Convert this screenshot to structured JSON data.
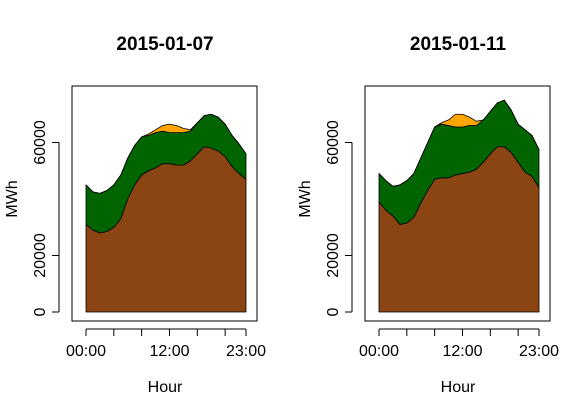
{
  "chart_data": [
    {
      "type": "area",
      "stacked": true,
      "title": "2015-01-07",
      "xlabel": "Hour",
      "ylabel": "MWh",
      "x": [
        0,
        1,
        2,
        3,
        4,
        5,
        6,
        7,
        8,
        9,
        10,
        11,
        12,
        13,
        14,
        15,
        16,
        17,
        18,
        19,
        20,
        21,
        22,
        23
      ],
      "xticks": [
        "00:00",
        "12:00",
        "23:00"
      ],
      "yticks": [
        "0",
        "20000",
        "60000"
      ],
      "ylim": [
        0,
        80000
      ],
      "xlim": [
        0,
        23
      ],
      "grid": false,
      "series": [
        {
          "color": "#8B4513",
          "values": [
            31000,
            29000,
            28000,
            28500,
            30000,
            33000,
            40000,
            45000,
            48500,
            50000,
            51000,
            52500,
            52500,
            52000,
            52000,
            53500,
            56000,
            58500,
            58000,
            57000,
            55000,
            51500,
            49000,
            47000
          ]
        },
        {
          "color": "#006400",
          "values": [
            14000,
            13500,
            14000,
            14500,
            15000,
            15500,
            14500,
            14000,
            13500,
            12500,
            12500,
            11500,
            11000,
            11500,
            11500,
            10500,
            11000,
            11000,
            12000,
            12000,
            11500,
            11000,
            10500,
            9000
          ]
        },
        {
          "color": "#FFA500",
          "values": [
            0,
            0,
            0,
            0,
            0,
            0,
            0,
            0,
            0,
            500,
            1000,
            2000,
            3000,
            2500,
            1500,
            500,
            0,
            0,
            0,
            0,
            0,
            0,
            0,
            0
          ]
        }
      ]
    },
    {
      "type": "area",
      "stacked": true,
      "title": "2015-01-11",
      "xlabel": "Hour",
      "ylabel": "MWh",
      "x": [
        0,
        1,
        2,
        3,
        4,
        5,
        6,
        7,
        8,
        9,
        10,
        11,
        12,
        13,
        14,
        15,
        16,
        17,
        18,
        19,
        20,
        21,
        22,
        23
      ],
      "xticks": [
        "00:00",
        "12:00",
        "23:00"
      ],
      "yticks": [
        "0",
        "20000",
        "60000"
      ],
      "ylim": [
        0,
        80000
      ],
      "xlim": [
        0,
        23
      ],
      "grid": false,
      "series": [
        {
          "color": "#8B4513",
          "values": [
            39000,
            36000,
            34000,
            31000,
            31500,
            33500,
            38500,
            43000,
            47000,
            47500,
            47500,
            48500,
            49000,
            49500,
            50500,
            53000,
            56000,
            58500,
            58500,
            56500,
            53000,
            49500,
            48000,
            44000
          ]
        },
        {
          "color": "#006400",
          "values": [
            10000,
            10500,
            10500,
            14000,
            15000,
            15500,
            16000,
            17000,
            18500,
            19000,
            18500,
            17000,
            16500,
            16500,
            15500,
            15000,
            15000,
            15500,
            16500,
            15000,
            13500,
            15000,
            14500,
            13500
          ]
        },
        {
          "color": "#FFA500",
          "values": [
            0,
            0,
            0,
            0,
            0,
            0,
            0,
            0,
            0,
            500,
            2000,
            4500,
            4500,
            3000,
            1500,
            0,
            0,
            0,
            0,
            0,
            0,
            0,
            0,
            0
          ]
        }
      ]
    }
  ]
}
